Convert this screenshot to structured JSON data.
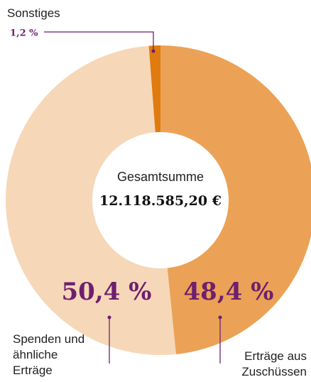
{
  "chart_data": {
    "type": "pie",
    "center_label": "Gesamtsumme",
    "center_value": "12.118.585,20 €",
    "categories": [
      "Erträge aus Zuschüssen",
      "Spenden und ähnliche Erträge",
      "Sonstiges"
    ],
    "values": [
      48.4,
      50.4,
      1.2
    ],
    "value_labels": [
      "48,4 %",
      "50,4 %",
      "1,2 %"
    ],
    "colors": [
      "#eba256",
      "#f6d7b8",
      "#e07b10"
    ]
  }
}
